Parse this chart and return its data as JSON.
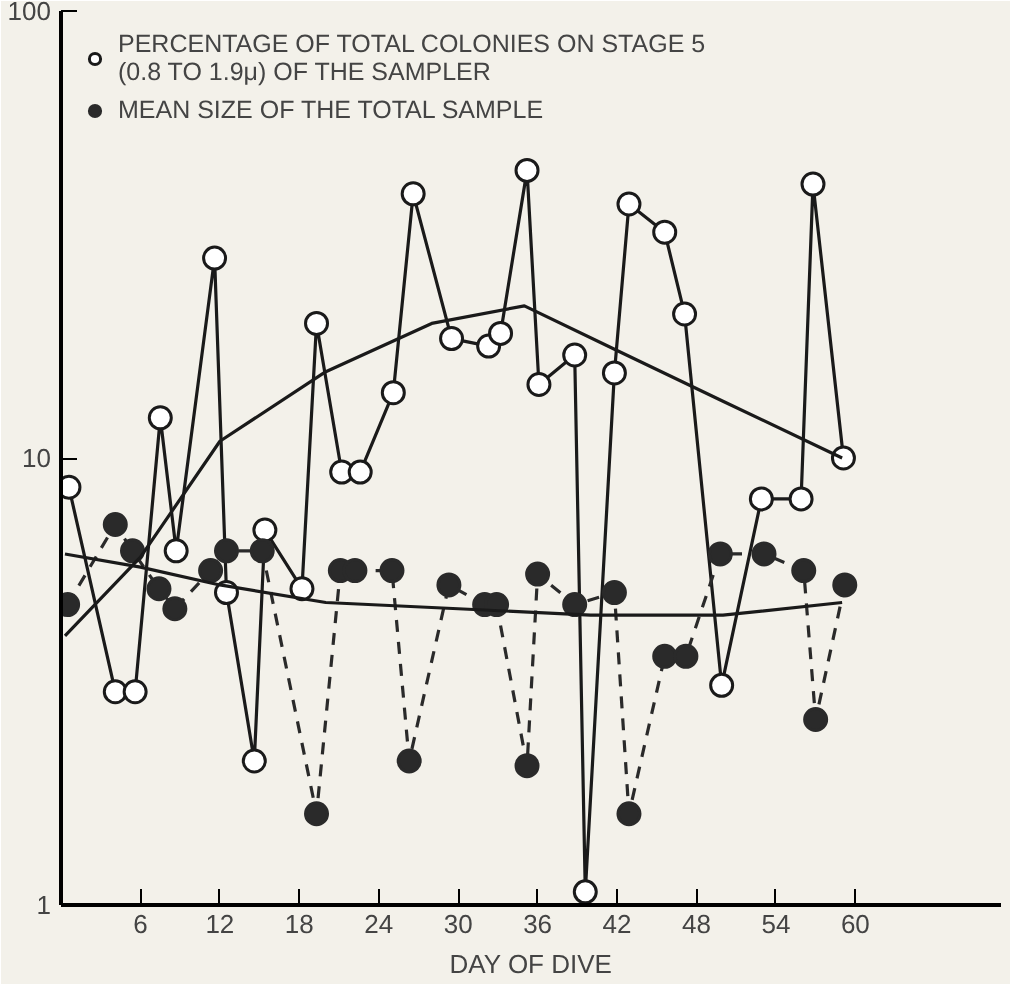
{
  "chart_data": {
    "type": "line",
    "xlabel": "DAY OF DIVE",
    "log": "y",
    "xlim": [
      0,
      71
    ],
    "xticks": [
      6,
      12,
      18,
      24,
      30,
      36,
      42,
      48,
      54,
      60
    ],
    "ylim": [
      1,
      100
    ],
    "yticks": [
      1,
      10,
      100
    ],
    "grid": false,
    "legend": "top left",
    "series": [
      {
        "name": "PERCENTAGE OF TOTAL COLONIES ON STAGE 5\n(0.8 TO 1.9μ) OF THE SAMPLER",
        "color": "#1a1a1a",
        "marker": "circle",
        "line_style": "solid",
        "x": [
          0.6,
          4.1,
          5.6,
          7.5,
          8.7,
          11.6,
          12.5,
          14.6,
          15.4,
          18.2,
          19.3,
          21.2,
          22.6,
          25.1,
          26.6,
          29.5,
          32.3,
          33.2,
          35.2,
          36.1,
          38.8,
          39.6,
          41.8,
          42.9,
          45.6,
          47.1,
          49.9,
          52.9,
          55.9,
          56.8,
          59.1
        ],
        "values": [
          8.6,
          3.0,
          3.0,
          12.3,
          6.2,
          28,
          5.0,
          2.1,
          6.9,
          5.1,
          20,
          9.3,
          9.3,
          14,
          39,
          18.5,
          17.8,
          19,
          44,
          14.6,
          17,
          1.07,
          15.5,
          37,
          32,
          21,
          3.1,
          8.1,
          8.1,
          41,
          10
        ]
      },
      {
        "name": "MEAN SIZE OF THE TOTAL SAMPLE",
        "color": "#2a2a2a",
        "marker": "circle",
        "line_style": "dashed",
        "x": [
          0.5,
          4.1,
          5.4,
          7.4,
          8.6,
          11.3,
          12.5,
          15.2,
          19.3,
          21.1,
          22.2,
          25.0,
          26.3,
          29.3,
          32.0,
          32.9,
          35.2,
          36.0,
          38.8,
          41.8,
          42.9,
          45.6,
          47.2,
          49.8,
          53.1,
          56.1,
          57.0,
          59.2
        ],
        "values": [
          4.7,
          7.1,
          6.2,
          5.1,
          4.6,
          5.6,
          6.2,
          6.2,
          1.6,
          5.6,
          5.6,
          5.6,
          2.1,
          5.2,
          4.7,
          4.7,
          2.05,
          5.5,
          4.7,
          5.0,
          1.6,
          3.6,
          3.6,
          6.1,
          6.1,
          5.6,
          2.6,
          5.2
        ]
      },
      {
        "color": "#1a1a1a",
        "marker": "none",
        "line_style": "solid",
        "x": [
          0.3,
          6,
          12,
          20,
          28,
          35,
          42,
          50,
          59
        ],
        "values": [
          4.0,
          6.0,
          10.9,
          15.6,
          20,
          21.9,
          17.4,
          13.4,
          10
        ]
      },
      {
        "color": "#1a1a1a",
        "marker": "none",
        "line_style": "solid",
        "x": [
          0.3,
          6,
          12,
          20,
          30,
          40,
          50,
          59
        ],
        "values": [
          6.1,
          5.7,
          5.2,
          4.75,
          4.6,
          4.45,
          4.45,
          4.75
        ]
      }
    ]
  }
}
